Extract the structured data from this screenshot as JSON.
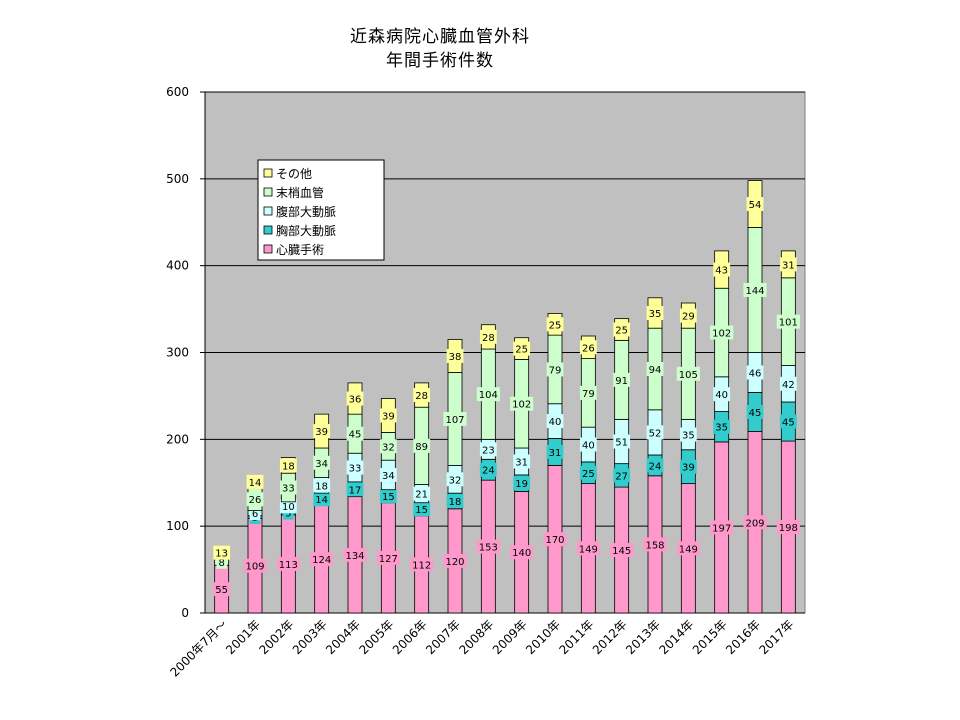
{
  "chart_data": {
    "type": "bar",
    "stacked": true,
    "title": "近森病院心臓血管外科",
    "subtitle": "年間手術件数",
    "categories": [
      "2000年7月～",
      "2001年",
      "2002年",
      "2003年",
      "2004年",
      "2005年",
      "2006年",
      "2007年",
      "2008年",
      "2009年",
      "2010年",
      "2011年",
      "2012年",
      "2013年",
      "2014年",
      "2015年",
      "2016年",
      "2017年"
    ],
    "ylim": [
      0,
      600
    ],
    "yticks": [
      0,
      100,
      200,
      300,
      400,
      500,
      600
    ],
    "grid": true,
    "legend_position": "top-left",
    "series": [
      {
        "name": "心臓手術",
        "color": "#ff99cc",
        "values": [
          55,
          109,
          113,
          124,
          134,
          127,
          112,
          120,
          153,
          140,
          170,
          149,
          145,
          158,
          149,
          197,
          209,
          198
        ]
      },
      {
        "name": "胸部大動脈",
        "color": "#33cccc",
        "values": [
          0,
          3,
          5,
          14,
          17,
          15,
          15,
          18,
          24,
          19,
          31,
          25,
          27,
          24,
          39,
          35,
          45,
          45
        ]
      },
      {
        "name": "腹部大動脈",
        "color": "#ccffff",
        "values": [
          0,
          6,
          10,
          18,
          33,
          34,
          21,
          32,
          23,
          31,
          40,
          40,
          51,
          52,
          35,
          40,
          46,
          42
        ]
      },
      {
        "name": "末梢血管",
        "color": "#ccffcc",
        "values": [
          8,
          26,
          33,
          34,
          45,
          32,
          89,
          107,
          104,
          102,
          79,
          79,
          91,
          94,
          105,
          102,
          144,
          101
        ]
      },
      {
        "name": "その他",
        "color": "#ffff99",
        "values": [
          13,
          14,
          18,
          39,
          36,
          39,
          28,
          38,
          28,
          25,
          25,
          26,
          25,
          35,
          29,
          43,
          54,
          31
        ]
      }
    ],
    "data_labels": [
      [
        "55",
        "109",
        "113",
        "124",
        "134",
        "127",
        "112",
        "120",
        "153",
        "140",
        "170",
        "149",
        "145",
        "158",
        "149",
        "197",
        "209",
        "198"
      ],
      [
        "",
        "3",
        "5",
        "14",
        "17",
        "15",
        "15",
        "18",
        "24",
        "19",
        "31",
        "25",
        "27",
        "24",
        "39",
        "35",
        "45",
        "45"
      ],
      [
        "",
        "6",
        "10",
        "18",
        "33",
        "34",
        "21",
        "32",
        "23",
        "31",
        "40",
        "40",
        "51",
        "52",
        "35",
        "40",
        "46",
        "42"
      ],
      [
        "8",
        "26",
        "33",
        "34",
        "45",
        "32",
        "89",
        "107",
        "104",
        "102",
        "79",
        "79",
        "91",
        "94",
        "105",
        "102",
        "144",
        "101"
      ],
      [
        "13",
        "14",
        "18",
        "39",
        "36",
        "39",
        "28",
        "38",
        "28",
        "25",
        "25",
        "26",
        "25",
        "35",
        "29",
        "43",
        "54",
        "31"
      ]
    ]
  },
  "legend_order": [
    4,
    3,
    2,
    1,
    0
  ],
  "colors": {
    "plot_bg": "#c0c0c0",
    "grid": "#000000",
    "bar_stroke": "#000000"
  }
}
